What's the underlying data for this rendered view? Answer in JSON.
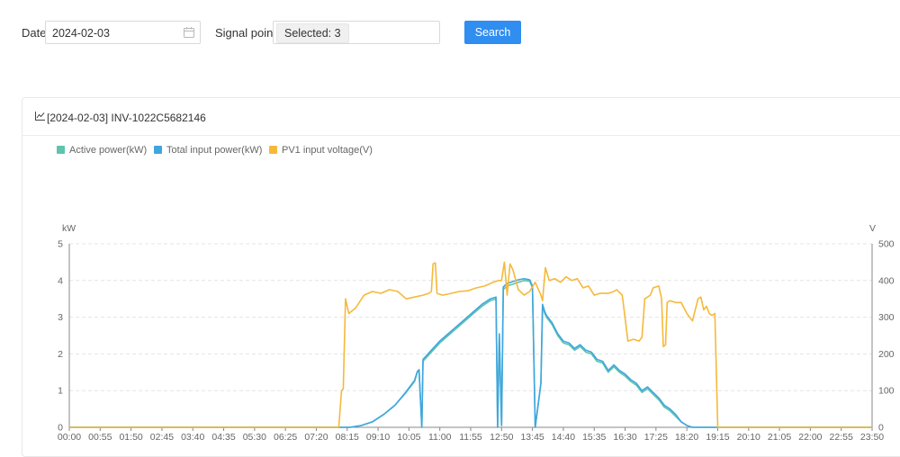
{
  "filters": {
    "date_label": "Date:",
    "date_value": "2024-02-03",
    "signal_label": "Signal point:",
    "signal_tag": "Selected: 3",
    "search_label": "Search"
  },
  "panel": {
    "title": "[2024-02-03] INV-1022C5682146"
  },
  "colors": {
    "active_power": "#5ec4ac",
    "total_input_power": "#3ea6df",
    "pv1_voltage": "#f5b93a",
    "search_button": "#2f8ef0"
  },
  "chart_data": {
    "type": "line",
    "legend_position": "top-left",
    "grid": true,
    "y_left": {
      "label": "kW",
      "range": [
        0,
        5
      ],
      "ticks": [
        "0",
        "1",
        "2",
        "3",
        "4",
        "5"
      ]
    },
    "y_right": {
      "label": "V",
      "range": [
        0,
        500
      ],
      "ticks": [
        "0",
        "100",
        "200",
        "300",
        "400",
        "500"
      ]
    },
    "x_ticks": [
      "00:00",
      "00:55",
      "01:50",
      "02:45",
      "03:40",
      "04:35",
      "05:30",
      "06:25",
      "07:20",
      "08:15",
      "09:10",
      "10:05",
      "11:00",
      "11:55",
      "12:50",
      "13:45",
      "14:40",
      "15:35",
      "16:30",
      "17:25",
      "18:20",
      "19:15",
      "20:10",
      "21:05",
      "22:00",
      "22:55",
      "23:50"
    ],
    "series": [
      {
        "name": "Active power(kW)",
        "axis": "left",
        "x": [
          "00:00",
          "08:20",
          "08:40",
          "09:00",
          "09:20",
          "09:40",
          "10:00",
          "10:15",
          "10:20",
          "10:23",
          "10:28",
          "10:30",
          "10:45",
          "11:00",
          "11:15",
          "11:30",
          "11:45",
          "12:00",
          "12:15",
          "12:30",
          "12:40",
          "12:43",
          "12:46",
          "12:50",
          "12:53",
          "12:56",
          "13:00",
          "13:10",
          "13:20",
          "13:30",
          "13:40",
          "13:45",
          "13:50",
          "14:00",
          "14:03",
          "14:07",
          "14:10",
          "14:20",
          "14:30",
          "14:40",
          "14:50",
          "15:00",
          "15:10",
          "15:20",
          "15:30",
          "15:40",
          "15:50",
          "16:00",
          "16:10",
          "16:20",
          "16:30",
          "16:40",
          "16:50",
          "17:00",
          "17:10",
          "17:20",
          "17:30",
          "17:40",
          "17:50",
          "18:00",
          "18:10",
          "18:20",
          "18:30",
          "18:40",
          "18:50",
          "19:00",
          "19:10",
          "19:15",
          "23:59"
        ],
        "values": [
          0,
          0,
          0.05,
          0.15,
          0.35,
          0.6,
          0.95,
          1.25,
          1.5,
          1.55,
          0,
          1.8,
          2.05,
          2.3,
          2.5,
          2.7,
          2.9,
          3.1,
          3.3,
          3.45,
          3.5,
          0,
          2.5,
          0.05,
          3.75,
          3.8,
          3.85,
          3.9,
          3.95,
          4.0,
          3.98,
          3.8,
          0,
          1.2,
          3.3,
          3.1,
          3.0,
          2.8,
          2.5,
          2.3,
          2.25,
          2.1,
          2.2,
          2.05,
          2.0,
          1.8,
          1.75,
          1.5,
          1.65,
          1.5,
          1.4,
          1.25,
          1.15,
          0.95,
          1.05,
          0.9,
          0.75,
          0.55,
          0.45,
          0.3,
          0.15,
          0.05,
          0,
          0,
          0,
          0,
          0,
          0,
          0
        ]
      },
      {
        "name": "Total input power(kW)",
        "axis": "left",
        "x": [
          "00:00",
          "08:20",
          "08:40",
          "09:00",
          "09:20",
          "09:40",
          "10:00",
          "10:15",
          "10:20",
          "10:23",
          "10:28",
          "10:30",
          "10:45",
          "11:00",
          "11:15",
          "11:30",
          "11:45",
          "12:00",
          "12:15",
          "12:30",
          "12:40",
          "12:43",
          "12:46",
          "12:50",
          "12:53",
          "12:56",
          "13:00",
          "13:10",
          "13:20",
          "13:30",
          "13:40",
          "13:45",
          "13:50",
          "14:00",
          "14:03",
          "14:07",
          "14:10",
          "14:20",
          "14:30",
          "14:40",
          "14:50",
          "15:00",
          "15:10",
          "15:20",
          "15:30",
          "15:40",
          "15:50",
          "16:00",
          "16:10",
          "16:20",
          "16:30",
          "16:40",
          "16:50",
          "17:00",
          "17:10",
          "17:20",
          "17:30",
          "17:40",
          "17:50",
          "18:00",
          "18:10",
          "18:20",
          "18:30",
          "18:40",
          "18:50",
          "19:00",
          "19:10",
          "19:15",
          "23:59"
        ],
        "values": [
          0,
          0,
          0.05,
          0.15,
          0.35,
          0.6,
          0.97,
          1.28,
          1.52,
          1.57,
          0,
          1.85,
          2.1,
          2.35,
          2.55,
          2.75,
          2.95,
          3.15,
          3.35,
          3.5,
          3.55,
          0,
          2.55,
          0.05,
          3.82,
          3.87,
          3.92,
          3.97,
          4.02,
          4.05,
          4.02,
          3.85,
          0,
          1.2,
          3.35,
          3.15,
          3.05,
          2.85,
          2.55,
          2.35,
          2.3,
          2.15,
          2.25,
          2.1,
          2.05,
          1.85,
          1.8,
          1.55,
          1.7,
          1.55,
          1.45,
          1.3,
          1.2,
          1.0,
          1.1,
          0.95,
          0.8,
          0.6,
          0.5,
          0.35,
          0.15,
          0.05,
          0,
          0,
          0,
          0,
          0,
          0,
          0
        ]
      },
      {
        "name": "PV1 input voltage(V)",
        "axis": "right",
        "x": [
          "00:00",
          "07:50",
          "08:00",
          "08:05",
          "08:08",
          "08:12",
          "08:18",
          "08:30",
          "08:45",
          "09:00",
          "09:15",
          "09:30",
          "09:45",
          "10:00",
          "10:15",
          "10:30",
          "10:40",
          "10:45",
          "10:48",
          "10:52",
          "10:55",
          "11:05",
          "11:20",
          "11:35",
          "11:50",
          "12:05",
          "12:20",
          "12:35",
          "12:45",
          "12:50",
          "12:55",
          "13:00",
          "13:05",
          "13:10",
          "13:20",
          "13:30",
          "13:40",
          "13:50",
          "14:00",
          "14:03",
          "14:08",
          "14:15",
          "14:25",
          "14:35",
          "14:45",
          "14:55",
          "15:05",
          "15:15",
          "15:25",
          "15:35",
          "15:45",
          "16:00",
          "16:10",
          "16:15",
          "16:18",
          "16:25",
          "16:35",
          "16:45",
          "16:55",
          "17:00",
          "17:05",
          "17:10",
          "17:15",
          "17:20",
          "17:30",
          "17:35",
          "17:38",
          "17:42",
          "17:45",
          "17:50",
          "18:00",
          "18:10",
          "18:20",
          "18:30",
          "18:40",
          "18:45",
          "18:50",
          "18:55",
          "19:00",
          "19:05",
          "19:10",
          "19:15",
          "23:59"
        ],
        "values": [
          0,
          0,
          0,
          100,
          105,
          350,
          310,
          325,
          360,
          370,
          365,
          375,
          370,
          350,
          355,
          360,
          365,
          370,
          445,
          448,
          365,
          360,
          365,
          370,
          372,
          380,
          385,
          395,
          400,
          400,
          450,
          360,
          445,
          430,
          375,
          360,
          370,
          395,
          360,
          345,
          435,
          400,
          405,
          395,
          410,
          400,
          405,
          380,
          385,
          360,
          365,
          365,
          370,
          375,
          370,
          360,
          235,
          240,
          235,
          245,
          350,
          355,
          360,
          380,
          385,
          350,
          220,
          225,
          340,
          345,
          340,
          340,
          310,
          290,
          350,
          355,
          320,
          330,
          310,
          305,
          310,
          0,
          0
        ]
      }
    ]
  }
}
